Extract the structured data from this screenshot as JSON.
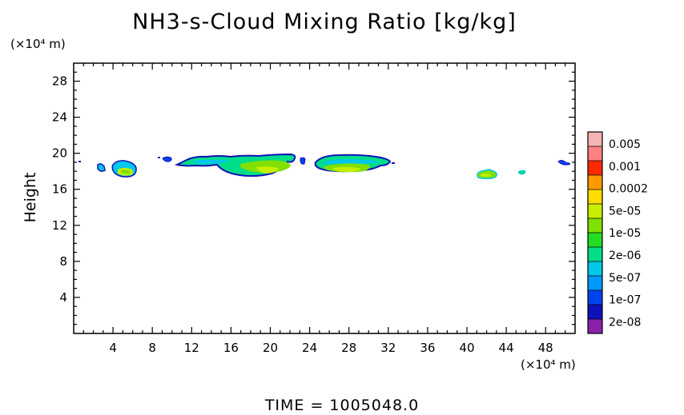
{
  "chart_data": {
    "type": "heatmap",
    "title": "NH3-s-Cloud Mixing Ratio [kg/kg]",
    "ylabel": "Height",
    "x_unit": "(×10⁴ m)",
    "y_unit": "(×10⁴ m)",
    "footer": "TIME = 1005048.0",
    "xlim": [
      0,
      51
    ],
    "ylim": [
      0,
      30
    ],
    "x_ticks": [
      4,
      8,
      12,
      16,
      20,
      24,
      28,
      32,
      36,
      40,
      44,
      48
    ],
    "y_ticks": [
      4,
      8,
      12,
      16,
      20,
      24,
      28
    ],
    "colorbar": {
      "labels": [
        "0.005",
        "0.001",
        "0.0002",
        "5e-05",
        "1e-05",
        "2e-06",
        "5e-07",
        "1e-07",
        "2e-08"
      ],
      "colors": [
        "#f5b3b3",
        "#ff8080",
        "#ff2a00",
        "#ff9900",
        "#ffdd00",
        "#c8ee00",
        "#80e000",
        "#22dd22",
        "#00dd88",
        "#00c8e8",
        "#0099ff",
        "#0044ee",
        "#1111bb",
        "#8822aa"
      ]
    },
    "regions": [
      {
        "x": 0.6,
        "y": 19.3,
        "level": 13
      },
      {
        "x": 2.8,
        "y": 18.6,
        "level": 10
      },
      {
        "x": 5.4,
        "y": 18.2,
        "level": 6
      },
      {
        "x": 9.6,
        "y": 19.6,
        "level": 12
      },
      {
        "x": 14.0,
        "y": 19.3,
        "level": 9
      },
      {
        "x": 20.0,
        "y": 18.8,
        "level": 6
      },
      {
        "x": 23.3,
        "y": 19.3,
        "level": 12
      },
      {
        "x": 27.5,
        "y": 19.0,
        "level": 6
      },
      {
        "x": 32.3,
        "y": 19.1,
        "level": 13
      },
      {
        "x": 42.0,
        "y": 17.8,
        "level": 7
      },
      {
        "x": 45.6,
        "y": 18.1,
        "level": 8
      },
      {
        "x": 49.5,
        "y": 19.2,
        "level": 12
      }
    ]
  }
}
